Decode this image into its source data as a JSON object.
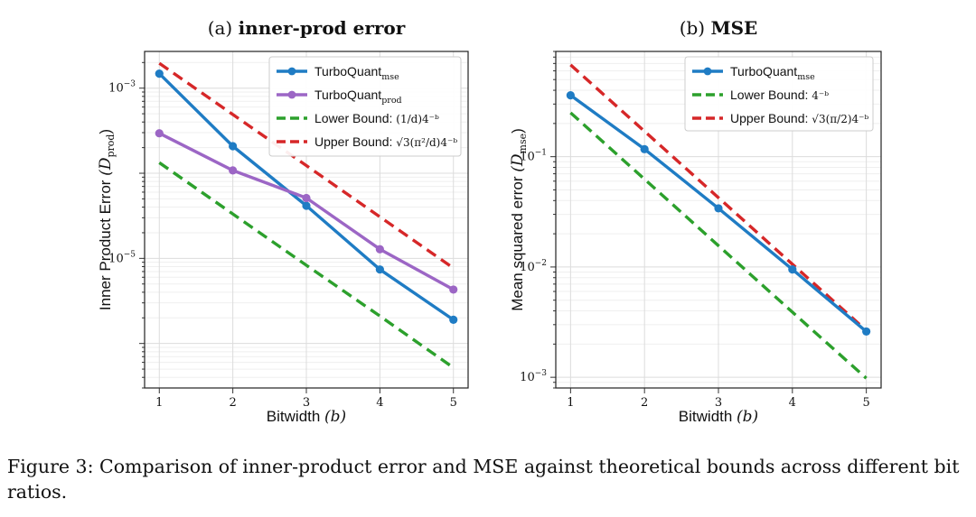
{
  "chart_data": [
    {
      "type": "line",
      "panel_label": "(a)",
      "title": "inner-prod error",
      "xlabel": "Bitwidth",
      "xlabel_var": "(b)",
      "ylabel": "Inner Product Error",
      "ylabel_var": "(D",
      "ylabel_sub": "prod",
      "ylabel_close": ")",
      "y_scale": "log",
      "xlim": [
        0.8,
        5.2
      ],
      "ylim": [
        3e-07,
        0.0027
      ],
      "x_ticks": [
        1,
        2,
        3,
        4,
        5
      ],
      "y_ticks": [
        {
          "value": 0.001,
          "base": "10",
          "exp": "−3"
        },
        {
          "value": 1e-05,
          "base": "10",
          "exp": "−5"
        }
      ],
      "grid": true,
      "legend_position": "top-right",
      "x": [
        1,
        2,
        3,
        4,
        5
      ],
      "series": [
        {
          "name": "TurboQuant",
          "sub": "mse",
          "formula": "",
          "color": "#1f7cc4",
          "style": "solid",
          "markers": true,
          "values": [
            0.00148,
            0.000208,
            4.15e-05,
            7.4e-06,
            1.9e-06
          ]
        },
        {
          "name": "TurboQuant",
          "sub": "prod",
          "formula": "",
          "color": "#9c66c5",
          "style": "solid",
          "markers": true,
          "values": [
            0.000295,
            0.000108,
            5.12e-05,
            1.28e-05,
            4.3e-06
          ]
        },
        {
          "name": "Lower Bound: ",
          "sub": "",
          "formula": "(1/d)4⁻ᵇ",
          "color": "#2ca02c",
          "style": "dashed",
          "markers": false,
          "values": [
            0.000133,
            3.33e-05,
            8.3e-06,
            2.1e-06,
            5.2e-07
          ]
        },
        {
          "name": "Upper Bound: ",
          "sub": "",
          "formula": "√3(π²/d)4⁻ᵇ",
          "color": "#d62728",
          "style": "dashed",
          "markers": false,
          "values": [
            0.00196,
            0.00049,
            0.000123,
            3.07e-05,
            7.7e-06
          ]
        }
      ]
    },
    {
      "type": "line",
      "panel_label": "(b)",
      "title": "MSE",
      "xlabel": "Bitwidth",
      "xlabel_var": "(b)",
      "ylabel": "Mean squared error",
      "ylabel_var": "(D",
      "ylabel_sub": "mse",
      "ylabel_close": ")",
      "y_scale": "log",
      "xlim": [
        0.8,
        5.2
      ],
      "ylim": [
        0.0008,
        0.9
      ],
      "x_ticks": [
        1,
        2,
        3,
        4,
        5
      ],
      "y_ticks": [
        {
          "value": 0.1,
          "base": "10",
          "exp": "−1"
        },
        {
          "value": 0.01,
          "base": "10",
          "exp": "−2"
        },
        {
          "value": 0.001,
          "base": "10",
          "exp": "−3"
        }
      ],
      "grid": true,
      "legend_position": "top-right",
      "x": [
        1,
        2,
        3,
        4,
        5
      ],
      "series": [
        {
          "name": "TurboQuant",
          "sub": "mse",
          "formula": "",
          "color": "#1f7cc4",
          "style": "solid",
          "markers": true,
          "values": [
            0.36,
            0.117,
            0.034,
            0.0095,
            0.0026
          ]
        },
        {
          "name": "Lower Bound: ",
          "sub": "",
          "formula": "4⁻ᵇ",
          "color": "#2ca02c",
          "style": "dashed",
          "markers": false,
          "values": [
            0.25,
            0.0625,
            0.0156,
            0.0039,
            0.00098
          ]
        },
        {
          "name": "Upper Bound: ",
          "sub": "",
          "formula": "√3(π/2)4⁻ᵇ",
          "color": "#d62728",
          "style": "dashed",
          "markers": false,
          "values": [
            0.68,
            0.17,
            0.0425,
            0.0106,
            0.00266
          ]
        }
      ]
    }
  ],
  "caption": "Figure 3: Comparison of inner-product error and MSE against theoretical bounds across different bit ratios."
}
